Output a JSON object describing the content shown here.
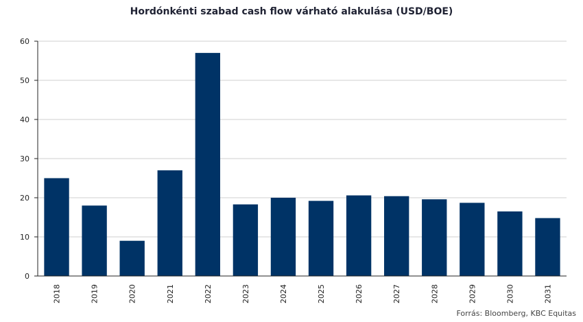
{
  "chart_data": {
    "type": "bar",
    "title": "Hordónkénti szabad cash flow várható alakulása (USD/BOE)",
    "categories": [
      "2018",
      "2019",
      "2020",
      "2021",
      "2022",
      "2023",
      "2024",
      "2025",
      "2026",
      "2027",
      "2028",
      "2029",
      "2030",
      "2031"
    ],
    "values": [
      25,
      18,
      9,
      27,
      57,
      18.3,
      20,
      19.2,
      20.6,
      20.4,
      19.6,
      18.7,
      16.5,
      14.8
    ],
    "ylim": [
      0,
      60
    ],
    "yticks": [
      0,
      10,
      20,
      30,
      40,
      50,
      60
    ],
    "xlabel": "",
    "ylabel": "",
    "grid": true,
    "bar_color": "#003366"
  },
  "source": "Forrás: Bloomberg, KBC Equitas"
}
